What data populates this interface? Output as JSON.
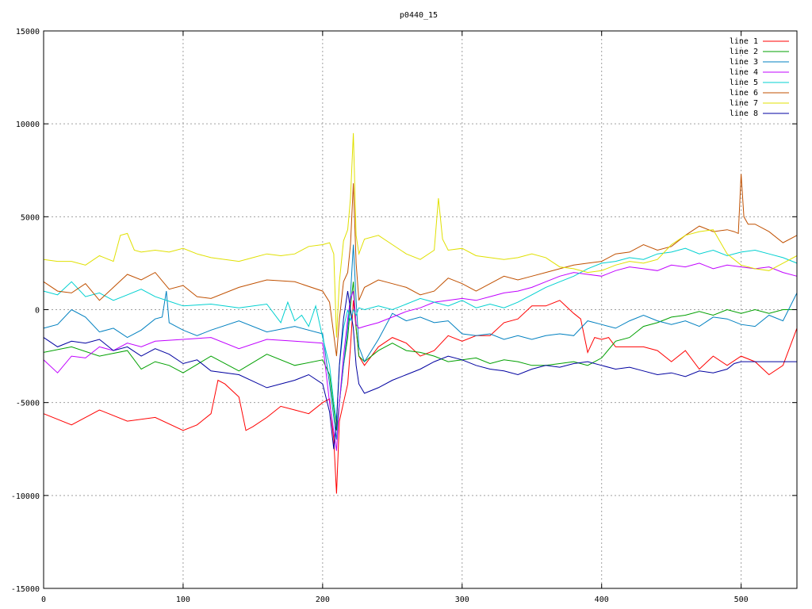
{
  "chart_data": {
    "type": "line",
    "title": "p0440_15",
    "xlabel": "",
    "ylabel": "",
    "xlim": [
      0,
      540
    ],
    "ylim": [
      -15000,
      15000
    ],
    "xticks": [
      "0",
      "100",
      "200",
      "300",
      "400",
      "500"
    ],
    "yticks": [
      "-15000",
      "-10000",
      "-5000",
      "0",
      "5000",
      "10000",
      "15000"
    ],
    "grid": true,
    "legend_position": "top-right",
    "series": [
      {
        "name": "line 1",
        "color": "#ff0000",
        "x": [
          0,
          20,
          40,
          60,
          80,
          100,
          110,
          120,
          125,
          130,
          140,
          145,
          150,
          160,
          170,
          180,
          190,
          200,
          205,
          208,
          210,
          212,
          215,
          218,
          220,
          222,
          224,
          226,
          230,
          240,
          250,
          260,
          270,
          280,
          290,
          300,
          310,
          320,
          330,
          340,
          350,
          360,
          370,
          380,
          385,
          390,
          395,
          400,
          405,
          410,
          420,
          430,
          440,
          450,
          460,
          470,
          480,
          490,
          500,
          510,
          520,
          530,
          540
        ],
        "y": [
          -5600,
          -6200,
          -5400,
          -6000,
          -5800,
          -6500,
          -6200,
          -5600,
          -3800,
          -4000,
          -4700,
          -6500,
          -6300,
          -5800,
          -5200,
          -5400,
          -5600,
          -5000,
          -4800,
          -7000,
          -9900,
          -6000,
          -5000,
          -4000,
          -2000,
          500,
          -1000,
          -2500,
          -3000,
          -2000,
          -1500,
          -1800,
          -2500,
          -2200,
          -1400,
          -1700,
          -1400,
          -1400,
          -700,
          -500,
          200,
          200,
          500,
          -200,
          -500,
          -2300,
          -1500,
          -1600,
          -1500,
          -2000,
          -2000,
          -2000,
          -2200,
          -2800,
          -2200,
          -3200,
          -2500,
          -3000,
          -2500,
          -2800,
          -3500,
          -3000,
          -1000
        ]
      },
      {
        "name": "line 2",
        "color": "#00a000",
        "x": [
          0,
          20,
          40,
          60,
          70,
          80,
          90,
          100,
          120,
          140,
          160,
          180,
          200,
          205,
          210,
          212,
          215,
          218,
          220,
          222,
          224,
          226,
          230,
          240,
          250,
          260,
          270,
          280,
          290,
          300,
          310,
          320,
          330,
          340,
          350,
          360,
          370,
          380,
          390,
          400,
          410,
          420,
          430,
          440,
          450,
          460,
          470,
          480,
          490,
          500,
          510,
          520,
          530,
          540
        ],
        "y": [
          -2300,
          -2000,
          -2500,
          -2200,
          -3200,
          -2800,
          -3000,
          -3400,
          -2500,
          -3300,
          -2400,
          -3000,
          -2700,
          -3500,
          -6500,
          -5000,
          -3000,
          -1500,
          200,
          1500,
          -1000,
          -2500,
          -2800,
          -2200,
          -1800,
          -2200,
          -2300,
          -2500,
          -2800,
          -2700,
          -2600,
          -2900,
          -2700,
          -2800,
          -3000,
          -3000,
          -2900,
          -2800,
          -3000,
          -2600,
          -1700,
          -1500,
          -900,
          -700,
          -400,
          -300,
          -100,
          -300,
          0,
          -200,
          0,
          -200,
          0,
          0
        ]
      },
      {
        "name": "line 3",
        "color": "#0080c0",
        "x": [
          0,
          10,
          20,
          30,
          40,
          50,
          60,
          70,
          80,
          85,
          88,
          90,
          100,
          110,
          120,
          140,
          160,
          180,
          200,
          205,
          210,
          212,
          215,
          218,
          220,
          222,
          224,
          226,
          230,
          240,
          250,
          260,
          270,
          280,
          290,
          300,
          310,
          320,
          330,
          340,
          350,
          360,
          370,
          380,
          390,
          400,
          410,
          420,
          430,
          440,
          450,
          460,
          470,
          480,
          490,
          500,
          510,
          520,
          530,
          540
        ],
        "y": [
          -1000,
          -800,
          0,
          -400,
          -1200,
          -1000,
          -1500,
          -1100,
          -500,
          -400,
          1000,
          -700,
          -1100,
          -1400,
          -1100,
          -600,
          -1200,
          -900,
          -1300,
          -4000,
          -7000,
          -5000,
          -3000,
          -1000,
          800,
          3500,
          500,
          -2000,
          -2800,
          -1600,
          -200,
          -600,
          -400,
          -700,
          -600,
          -1300,
          -1400,
          -1300,
          -1600,
          -1400,
          -1600,
          -1400,
          -1300,
          -1400,
          -600,
          -800,
          -1000,
          -600,
          -300,
          -600,
          -800,
          -600,
          -900,
          -400,
          -500,
          -800,
          -900,
          -300,
          -600,
          900
        ]
      },
      {
        "name": "line 4",
        "color": "#c000ff",
        "x": [
          0,
          10,
          20,
          30,
          40,
          50,
          60,
          70,
          80,
          100,
          120,
          140,
          160,
          180,
          200,
          205,
          210,
          212,
          215,
          218,
          220,
          222,
          224,
          226,
          230,
          240,
          250,
          260,
          270,
          280,
          290,
          300,
          310,
          320,
          330,
          340,
          350,
          360,
          370,
          380,
          390,
          400,
          410,
          420,
          430,
          440,
          450,
          460,
          470,
          480,
          490,
          500,
          510,
          520,
          530,
          540
        ],
        "y": [
          -2700,
          -3400,
          -2500,
          -2600,
          -2000,
          -2200,
          -1800,
          -2000,
          -1700,
          -1600,
          -1500,
          -2100,
          -1600,
          -1700,
          -1800,
          -5000,
          -7600,
          -5000,
          -2500,
          -500,
          600,
          1000,
          -800,
          -1000,
          -900,
          -700,
          -400,
          -100,
          100,
          400,
          500,
          600,
          500,
          700,
          900,
          1000,
          1200,
          1500,
          1800,
          2000,
          1900,
          1800,
          2100,
          2300,
          2200,
          2100,
          2400,
          2300,
          2500,
          2200,
          2400,
          2300,
          2200,
          2300,
          2000,
          1800
        ]
      },
      {
        "name": "line 5",
        "color": "#00d0d0",
        "x": [
          0,
          10,
          20,
          30,
          40,
          50,
          60,
          70,
          80,
          100,
          120,
          140,
          160,
          170,
          175,
          180,
          185,
          190,
          195,
          200,
          205,
          208,
          210,
          212,
          215,
          218,
          220,
          222,
          224,
          226,
          230,
          240,
          250,
          260,
          270,
          280,
          290,
          300,
          310,
          320,
          330,
          340,
          350,
          360,
          370,
          380,
          390,
          400,
          410,
          420,
          430,
          440,
          450,
          460,
          470,
          480,
          490,
          500,
          510,
          520,
          530,
          540
        ],
        "y": [
          1000,
          800,
          1500,
          700,
          900,
          500,
          800,
          1100,
          700,
          200,
          300,
          100,
          300,
          -700,
          400,
          -600,
          -300,
          -900,
          200,
          -1500,
          -3000,
          -5000,
          -6000,
          -3000,
          -1000,
          0,
          -600,
          0,
          -300,
          100,
          0,
          200,
          0,
          300,
          600,
          400,
          200,
          500,
          100,
          300,
          100,
          400,
          800,
          1200,
          1500,
          1800,
          2200,
          2500,
          2600,
          2800,
          2700,
          3000,
          3100,
          3300,
          3000,
          3200,
          2900,
          3100,
          3200,
          3000,
          2800,
          2500
        ]
      },
      {
        "name": "line 6",
        "color": "#c05000",
        "x": [
          0,
          10,
          20,
          30,
          40,
          50,
          60,
          70,
          80,
          90,
          100,
          110,
          120,
          140,
          160,
          180,
          200,
          205,
          210,
          212,
          215,
          218,
          220,
          222,
          224,
          226,
          230,
          240,
          250,
          260,
          270,
          280,
          290,
          300,
          310,
          320,
          330,
          340,
          350,
          360,
          370,
          380,
          390,
          400,
          410,
          420,
          430,
          440,
          450,
          460,
          470,
          480,
          490,
          495,
          498,
          500,
          502,
          505,
          510,
          520,
          530,
          540
        ],
        "y": [
          1500,
          1000,
          900,
          1400,
          500,
          1200,
          1900,
          1600,
          2000,
          1100,
          1300,
          700,
          600,
          1200,
          1600,
          1500,
          1000,
          400,
          -2500,
          -500,
          1500,
          2000,
          3500,
          6800,
          2500,
          500,
          1200,
          1600,
          1400,
          1200,
          800,
          1000,
          1700,
          1400,
          1000,
          1400,
          1800,
          1600,
          1800,
          2000,
          2200,
          2400,
          2500,
          2600,
          3000,
          3100,
          3500,
          3200,
          3400,
          4000,
          4500,
          4200,
          4300,
          4200,
          4100,
          7300,
          5000,
          4600,
          4600,
          4200,
          3600,
          4000
        ]
      },
      {
        "name": "line 7",
        "color": "#e0e000",
        "x": [
          0,
          10,
          20,
          30,
          40,
          50,
          55,
          60,
          65,
          70,
          80,
          90,
          100,
          110,
          120,
          140,
          150,
          160,
          170,
          180,
          190,
          200,
          205,
          208,
          210,
          212,
          215,
          218,
          220,
          222,
          224,
          226,
          230,
          240,
          250,
          260,
          270,
          280,
          283,
          286,
          290,
          300,
          310,
          320,
          330,
          340,
          350,
          360,
          370,
          380,
          390,
          400,
          410,
          420,
          430,
          440,
          450,
          460,
          470,
          480,
          490,
          500,
          510,
          520,
          530,
          540
        ],
        "y": [
          2700,
          2600,
          2600,
          2400,
          2900,
          2600,
          4000,
          4100,
          3200,
          3100,
          3200,
          3100,
          3300,
          3000,
          2800,
          2600,
          2800,
          3000,
          2900,
          3000,
          3400,
          3500,
          3600,
          3000,
          -1500,
          1500,
          3700,
          4300,
          6000,
          9500,
          4000,
          3000,
          3800,
          4000,
          3500,
          3000,
          2700,
          3200,
          6000,
          3800,
          3200,
          3300,
          2900,
          2800,
          2700,
          2800,
          3000,
          2800,
          2300,
          2200,
          2000,
          2100,
          2400,
          2600,
          2500,
          2700,
          3500,
          4000,
          4200,
          4300,
          3000,
          2400,
          2200,
          2100,
          2500,
          2900
        ]
      },
      {
        "name": "line 8",
        "color": "#0000a0",
        "x": [
          0,
          10,
          20,
          30,
          40,
          50,
          60,
          70,
          80,
          90,
          100,
          110,
          120,
          140,
          160,
          180,
          190,
          200,
          205,
          208,
          210,
          212,
          215,
          218,
          220,
          222,
          224,
          226,
          230,
          240,
          250,
          260,
          270,
          280,
          290,
          300,
          310,
          320,
          330,
          340,
          350,
          360,
          370,
          380,
          390,
          400,
          410,
          420,
          430,
          440,
          450,
          460,
          470,
          480,
          490,
          495,
          500,
          510,
          520,
          530,
          540
        ],
        "y": [
          -1500,
          -2000,
          -1700,
          -1800,
          -1600,
          -2200,
          -2000,
          -2500,
          -2100,
          -2400,
          -2900,
          -2700,
          -3300,
          -3500,
          -4200,
          -3800,
          -3500,
          -4000,
          -5500,
          -7500,
          -6000,
          -3000,
          -500,
          1000,
          0,
          -1000,
          -3000,
          -4000,
          -4500,
          -4200,
          -3800,
          -3500,
          -3200,
          -2800,
          -2500,
          -2700,
          -3000,
          -3200,
          -3300,
          -3500,
          -3200,
          -3000,
          -3100,
          -2900,
          -2800,
          -3000,
          -3200,
          -3100,
          -3300,
          -3500,
          -3400,
          -3600,
          -3300,
          -3400,
          -3200,
          -2900,
          -2800,
          -2800,
          -2800,
          -2800,
          -2800
        ]
      }
    ]
  }
}
